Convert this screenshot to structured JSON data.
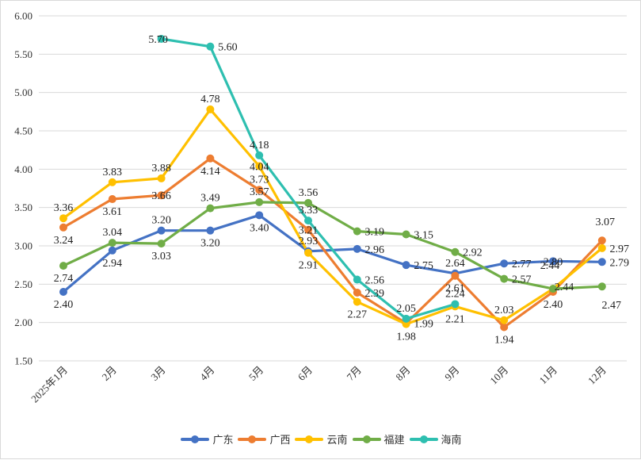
{
  "chart_data": {
    "type": "line",
    "title": "",
    "xlabel": "",
    "ylabel": "",
    "categories": [
      "2025年1月",
      "2月",
      "3月",
      "4月",
      "5月",
      "6月",
      "7月",
      "8月",
      "9月",
      "10月",
      "11月",
      "12月"
    ],
    "ylim": [
      1.5,
      6.0
    ],
    "yticks": [
      "1.50",
      "2.00",
      "2.50",
      "3.00",
      "3.50",
      "4.00",
      "4.50",
      "5.00",
      "5.50",
      "6.00"
    ],
    "grid": true,
    "legend_position": "bottom",
    "series": [
      {
        "name": "广东",
        "color": "#4472C4",
        "values": [
          2.4,
          2.94,
          3.2,
          3.2,
          3.4,
          2.93,
          2.96,
          2.75,
          2.64,
          2.77,
          2.8,
          2.79
        ],
        "labels": [
          "2.40",
          "2.94",
          "3.20",
          "3.20",
          "3.40",
          "2.93",
          "2.96",
          "2.75",
          "2.64",
          "2.77",
          "2.80",
          "2.79"
        ]
      },
      {
        "name": "广西",
        "color": "#ED7D31",
        "values": [
          3.24,
          3.61,
          3.66,
          4.14,
          3.73,
          3.21,
          2.39,
          1.99,
          2.61,
          1.94,
          2.4,
          3.07
        ],
        "labels": [
          "3.24",
          "3.61",
          "3.66",
          "4.14",
          "3.73",
          "3.21",
          "2.39",
          "1.99",
          "2.61",
          "1.94",
          "2.40",
          "3.07"
        ]
      },
      {
        "name": "云南",
        "color": "#FFC000",
        "values": [
          3.36,
          3.83,
          3.88,
          4.78,
          4.04,
          2.91,
          2.27,
          1.98,
          2.21,
          2.03,
          2.44,
          2.97
        ],
        "labels": [
          "3.36",
          "3.83",
          "3.88",
          "4.78",
          "4.04",
          "2.91",
          "2.27",
          "1.98",
          "2.21",
          "2.03",
          "2.44",
          "2.97"
        ]
      },
      {
        "name": "福建",
        "color": "#70AD47",
        "values": [
          2.74,
          3.04,
          3.03,
          3.49,
          3.57,
          3.56,
          3.19,
          3.15,
          2.92,
          2.57,
          2.44,
          2.47
        ],
        "labels": [
          "2.74",
          "3.04",
          "3.03",
          "3.49",
          "3.57",
          "3.56",
          "3.19",
          "3.15",
          "2.92",
          "2.57",
          "2.44",
          "2.47"
        ]
      },
      {
        "name": "海南",
        "color": "#2EBFB0",
        "values": [
          null,
          null,
          5.7,
          5.6,
          4.18,
          3.33,
          2.56,
          2.05,
          2.24,
          null,
          null,
          null
        ],
        "labels": [
          null,
          null,
          "5.70",
          "5.60",
          "4.18",
          "3.33",
          "2.56",
          "2.05",
          "2.24",
          null,
          null,
          null
        ]
      }
    ]
  }
}
